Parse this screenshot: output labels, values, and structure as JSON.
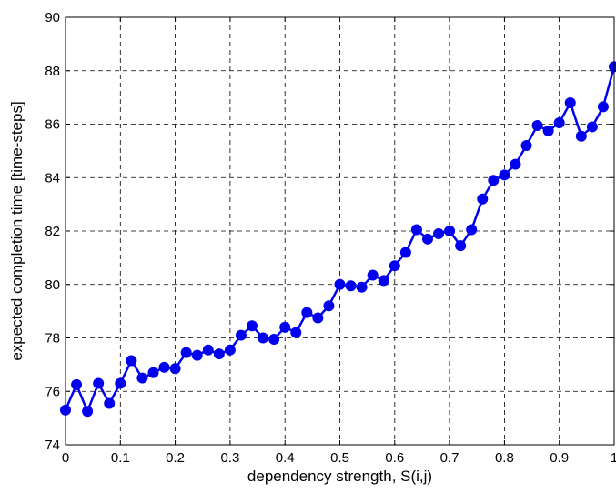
{
  "chart_data": {
    "type": "line",
    "title": "",
    "xlabel": "dependency strength, S(i,j)",
    "ylabel": "expected completion time [time-steps]",
    "xlim": [
      0,
      1
    ],
    "ylim": [
      74,
      90
    ],
    "xticks": [
      0,
      0.1,
      0.2,
      0.3,
      0.4,
      0.5,
      0.6,
      0.7,
      0.8,
      0.9,
      1
    ],
    "xtick_labels": [
      "0",
      "0.1",
      "0.2",
      "0.3",
      "0.4",
      "0.5",
      "0.6",
      "0.7",
      "0.8",
      "0.9",
      "1"
    ],
    "yticks": [
      74,
      76,
      78,
      80,
      82,
      84,
      86,
      88,
      90
    ],
    "ytick_labels": [
      "74",
      "76",
      "78",
      "80",
      "82",
      "84",
      "86",
      "88",
      "90"
    ],
    "grid": true,
    "grid_style": "dashed",
    "series_color": "#0000ee",
    "series": [
      {
        "x": [
          0,
          0.02,
          0.04,
          0.06,
          0.08,
          0.1,
          0.12,
          0.14,
          0.16,
          0.18,
          0.2,
          0.22,
          0.24,
          0.26,
          0.28,
          0.3,
          0.32,
          0.34,
          0.36,
          0.38,
          0.4,
          0.42,
          0.44,
          0.46,
          0.48,
          0.5,
          0.52,
          0.54,
          0.56,
          0.58,
          0.6,
          0.62,
          0.64,
          0.66,
          0.68,
          0.7,
          0.72,
          0.74,
          0.76,
          0.78,
          0.8,
          0.82,
          0.84,
          0.86,
          0.88,
          0.9,
          0.92,
          0.94,
          0.96,
          0.98,
          1
        ],
        "values": [
          75.3,
          76.25,
          75.25,
          76.3,
          75.55,
          76.3,
          77.15,
          76.5,
          76.7,
          76.9,
          76.85,
          77.45,
          77.35,
          77.55,
          77.4,
          77.55,
          78.1,
          78.45,
          78.0,
          77.95,
          78.4,
          78.2,
          78.95,
          78.75,
          79.2,
          80.0,
          79.95,
          79.9,
          80.35,
          80.15,
          80.7,
          81.2,
          82.05,
          81.7,
          81.9,
          82.0,
          81.45,
          82.05,
          83.2,
          83.9,
          84.1,
          84.5,
          85.2,
          85.95,
          85.75,
          86.05,
          86.8,
          85.55,
          85.9,
          86.65,
          88.15
        ]
      }
    ]
  }
}
